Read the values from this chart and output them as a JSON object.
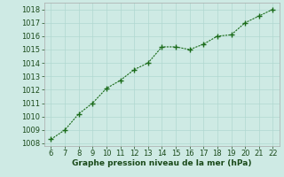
{
  "x": [
    6,
    7,
    8,
    9,
    10,
    11,
    12,
    13,
    14,
    15,
    16,
    17,
    18,
    19,
    20,
    21,
    22
  ],
  "y": [
    1008.3,
    1009.0,
    1010.2,
    1011.0,
    1012.1,
    1012.7,
    1013.5,
    1014.0,
    1015.2,
    1015.2,
    1015.0,
    1015.4,
    1016.0,
    1016.1,
    1017.0,
    1017.5,
    1018.0
  ],
  "xlim": [
    5.5,
    22.5
  ],
  "ylim": [
    1007.8,
    1018.5
  ],
  "yticks": [
    1008,
    1009,
    1010,
    1011,
    1012,
    1013,
    1014,
    1015,
    1016,
    1017,
    1018
  ],
  "xticks": [
    6,
    7,
    8,
    9,
    10,
    11,
    12,
    13,
    14,
    15,
    16,
    17,
    18,
    19,
    20,
    21,
    22
  ],
  "line_color": "#1a6b1a",
  "marker": "+",
  "marker_size": 4,
  "marker_linewidth": 1.0,
  "line_width": 0.8,
  "bg_color": "#ceeae4",
  "grid_color": "#b0d8d0",
  "xlabel": "Graphe pression niveau de la mer (hPa)",
  "xlabel_fontsize": 6.5,
  "tick_fontsize": 6.0,
  "tick_color": "#1a4a1a"
}
